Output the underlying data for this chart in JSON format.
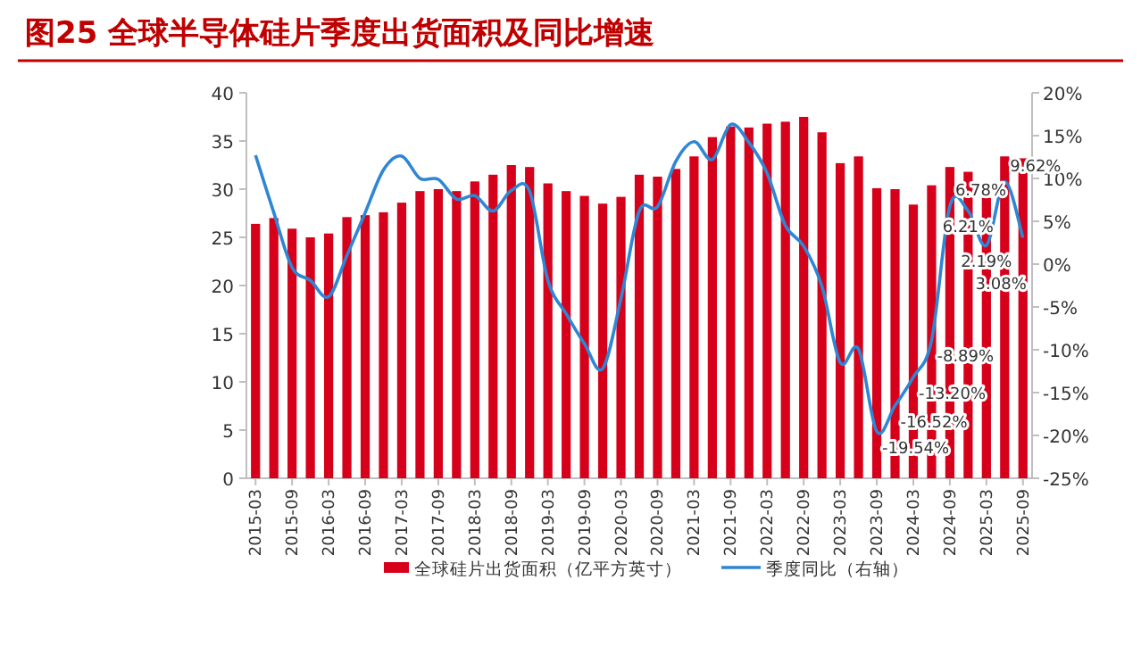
{
  "chart_data": {
    "type": "bar",
    "title": "图25  全球半导体硅片季度出货面积及同比增速",
    "categories": [
      "2015-03",
      null,
      "2015-09",
      null,
      "2016-03",
      null,
      "2016-09",
      null,
      "2017-03",
      null,
      "2017-09",
      null,
      "2018-03",
      null,
      "2018-09",
      null,
      "2019-03",
      null,
      "2019-09",
      null,
      "2020-03",
      null,
      "2020-09",
      null,
      "2021-03",
      null,
      "2021-09",
      null,
      "2022-03",
      null,
      "2022-09",
      null,
      "2023-03",
      null,
      "2023-09",
      null,
      "2024-03",
      null,
      "2024-09",
      null,
      "2025-03",
      null,
      "2025-09"
    ],
    "series": [
      {
        "name": "全球硅片出货面积（亿平方英寸）",
        "color": "#d7001a",
        "values": [
          26.4,
          27.0,
          25.9,
          25.0,
          25.4,
          27.1,
          27.3,
          27.6,
          28.6,
          29.8,
          30.0,
          29.8,
          30.8,
          31.5,
          32.5,
          32.3,
          30.6,
          29.8,
          29.3,
          28.5,
          29.2,
          31.5,
          31.3,
          32.1,
          33.4,
          35.4,
          36.5,
          36.4,
          36.8,
          37.0,
          37.5,
          35.9,
          32.7,
          33.4,
          30.1,
          30.0,
          28.4,
          30.4,
          32.3,
          31.8,
          29.1,
          33.4,
          33.2
        ]
      },
      {
        "name": "季度同比（右轴）",
        "type": "line",
        "axis": "y2",
        "color": "#2e86d4",
        "values": [
          12.7,
          6.0,
          -0.4,
          -1.9,
          -3.8,
          1.0,
          6.0,
          11.0,
          12.6,
          10.0,
          9.9,
          7.6,
          8.0,
          6.2,
          8.6,
          8.5,
          -1.9,
          -5.8,
          -9.3,
          -12.2,
          -4.0,
          6.2,
          6.7,
          12.0,
          14.3,
          12.2,
          16.3,
          14.2,
          10.6,
          4.5,
          2.1,
          -2.6,
          -11.5,
          -9.9,
          -19.54,
          -16.52,
          -13.2,
          -8.89,
          6.78,
          6.21,
          2.19,
          9.62,
          3.08
        ],
        "value_labels": [
          null,
          null,
          null,
          null,
          null,
          null,
          null,
          null,
          null,
          null,
          null,
          null,
          null,
          null,
          null,
          null,
          null,
          null,
          null,
          null,
          null,
          null,
          null,
          null,
          null,
          null,
          null,
          null,
          null,
          null,
          null,
          null,
          null,
          null,
          "-19.54%",
          "-16.52%",
          "-13.20%",
          "-8.89%",
          "6.78%",
          "6.21%",
          "2.19%",
          "9.62%",
          "3.08%"
        ]
      }
    ],
    "ylim": [
      0,
      40
    ],
    "yticks": [
      0,
      5,
      10,
      15,
      20,
      25,
      30,
      35,
      40
    ],
    "y2lim": [
      -25,
      20
    ],
    "y2ticks": [
      {
        "value": -25,
        "label": "-25%"
      },
      {
        "value": -20,
        "label": "-20%"
      },
      {
        "value": -15,
        "label": "-15%"
      },
      {
        "value": -10,
        "label": "-10%"
      },
      {
        "value": -5,
        "label": "-5%"
      },
      {
        "value": 0,
        "label": "0%"
      },
      {
        "value": 5,
        "label": "5%"
      },
      {
        "value": 10,
        "label": "10%"
      },
      {
        "value": 15,
        "label": "15%"
      },
      {
        "value": 20,
        "label": "20%"
      }
    ],
    "legend": "bottom"
  }
}
